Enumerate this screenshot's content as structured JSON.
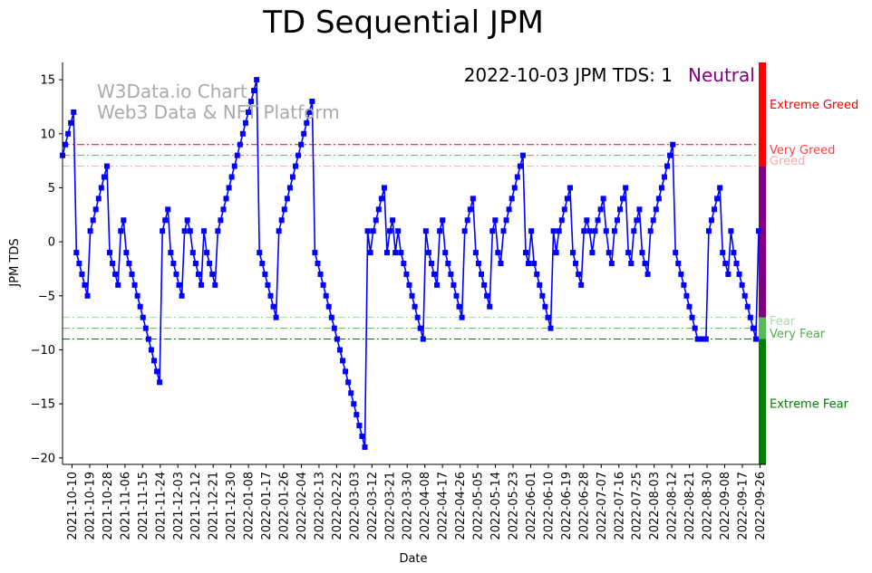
{
  "chart_data": {
    "type": "line",
    "title": "TD Sequential JPM",
    "xlabel": "Date",
    "ylabel": "JPM TDS",
    "ylim": [
      -20.6,
      16.6
    ],
    "yticks": [
      15,
      10,
      5,
      0,
      -5,
      -10,
      -15,
      -20
    ],
    "x_tick_labels": [
      "2021-10-10",
      "2021-10-19",
      "2021-10-28",
      "2021-11-06",
      "2021-11-15",
      "2021-11-24",
      "2021-12-03",
      "2021-12-12",
      "2021-12-21",
      "2021-12-30",
      "2022-01-08",
      "2022-01-17",
      "2022-01-26",
      "2022-02-04",
      "2022-02-13",
      "2022-02-22",
      "2022-03-03",
      "2022-03-12",
      "2022-03-21",
      "2022-03-30",
      "2022-04-08",
      "2022-04-17",
      "2022-04-26",
      "2022-05-05",
      "2022-05-14",
      "2022-05-23",
      "2022-06-01",
      "2022-06-10",
      "2022-06-19",
      "2022-06-28",
      "2022-07-07",
      "2022-07-16",
      "2022-07-25",
      "2022-08-03",
      "2022-08-12",
      "2022-08-21",
      "2022-08-30",
      "2022-09-08",
      "2022-09-17",
      "2022-09-26"
    ],
    "series": [
      {
        "name": "JPM TDS",
        "color": "#0000ff",
        "values": [
          8,
          9,
          10,
          11,
          12,
          -1,
          -2,
          -3,
          -4,
          -5,
          1,
          2,
          3,
          4,
          5,
          6,
          7,
          -1,
          -2,
          -3,
          -4,
          1,
          2,
          -1,
          -2,
          -3,
          -4,
          -5,
          -6,
          -7,
          -8,
          -9,
          -10,
          -11,
          -12,
          -13,
          1,
          2,
          3,
          -1,
          -2,
          -3,
          -4,
          -5,
          1,
          2,
          1,
          -1,
          -2,
          -3,
          -4,
          1,
          -1,
          -2,
          -3,
          -4,
          1,
          2,
          3,
          4,
          5,
          6,
          7,
          8,
          9,
          10,
          11,
          12,
          13,
          14,
          15,
          -1,
          -2,
          -3,
          -4,
          -5,
          -6,
          -7,
          1,
          2,
          3,
          4,
          5,
          6,
          7,
          8,
          9,
          10,
          11,
          12,
          13,
          -1,
          -2,
          -3,
          -4,
          -5,
          -6,
          -7,
          -8,
          -9,
          -10,
          -11,
          -12,
          -13,
          -14,
          -15,
          -16,
          -17,
          -18,
          -19,
          1,
          -1,
          1,
          2,
          3,
          4,
          5,
          -1,
          1,
          2,
          -1,
          1,
          -1,
          -2,
          -3,
          -4,
          -5,
          -6,
          -7,
          -8,
          -9,
          1,
          -1,
          -2,
          -3,
          -4,
          1,
          2,
          -1,
          -2,
          -3,
          -4,
          -5,
          -6,
          -7,
          1,
          2,
          3,
          4,
          -1,
          -2,
          -3,
          -4,
          -5,
          -6,
          1,
          2,
          -1,
          -2,
          1,
          2,
          3,
          4,
          5,
          6,
          7,
          8,
          -1,
          -2,
          1,
          -2,
          -3,
          -4,
          -5,
          -6,
          -7,
          -8,
          1,
          -1,
          1,
          2,
          3,
          4,
          5,
          -1,
          -2,
          -3,
          -4,
          1,
          2,
          1,
          -1,
          1,
          2,
          3,
          4,
          1,
          -1,
          -2,
          1,
          2,
          3,
          4,
          5,
          -1,
          -2,
          1,
          2,
          3,
          -1,
          -2,
          -3,
          1,
          2,
          3,
          4,
          5,
          6,
          7,
          8,
          9,
          -1,
          -2,
          -3,
          -4,
          -5,
          -6,
          -7,
          -8,
          -9,
          -9,
          -9,
          -9,
          1,
          2,
          3,
          4,
          5,
          -1,
          -2,
          -3,
          1,
          -1,
          -2,
          -3,
          -4,
          -5,
          -6,
          -7,
          -8,
          -9,
          1
        ]
      }
    ],
    "threshold_lines": [
      {
        "name": "Very Greed",
        "value": 9,
        "color": "#ff0000",
        "dash": "dashdot"
      },
      {
        "name": "Greed",
        "value": 8,
        "color": "#ff6666",
        "dash": "dashdot"
      },
      {
        "name": "Greed light",
        "value": 7,
        "color": "#ffaaaa",
        "dash": "dashdot"
      },
      {
        "name": "Fear",
        "value": -7,
        "color": "#99dd99",
        "dash": "dashdot"
      },
      {
        "name": "Very Fear",
        "value": -8,
        "color": "#55bb55",
        "dash": "dashdot"
      },
      {
        "name": "Extreme Fear",
        "value": -9,
        "color": "#008000",
        "dash": "dashdot"
      }
    ],
    "zone_labels": [
      {
        "text": "Extreme Greed",
        "value": 12.7,
        "color": "#ff0000"
      },
      {
        "text": "Very Greed",
        "value": 8.5,
        "color": "#ff4444"
      },
      {
        "text": "Greed",
        "value": 7.5,
        "color": "#ffaaaa"
      },
      {
        "text": "Fear",
        "value": -7.3,
        "color": "#aaddaa"
      },
      {
        "text": "Very Fear",
        "value": -8.5,
        "color": "#55aa55"
      },
      {
        "text": "Extreme Fear",
        "value": -15.0,
        "color": "#008000"
      }
    ],
    "color_bar": [
      {
        "from": 16.6,
        "to": 7,
        "color": "#ff0000"
      },
      {
        "from": 7,
        "to": -7,
        "color": "#800080"
      },
      {
        "from": -7,
        "to": -9,
        "color": "#55bb55"
      },
      {
        "from": -9,
        "to": -20.6,
        "color": "#008000"
      }
    ],
    "status_text": "2022-10-03 JPM TDS: 1",
    "status_label": "Neutral",
    "status_label_color": "#800080",
    "watermark_lines": [
      "W3Data.io Chart",
      "Web3 Data & NFT Platform"
    ]
  }
}
